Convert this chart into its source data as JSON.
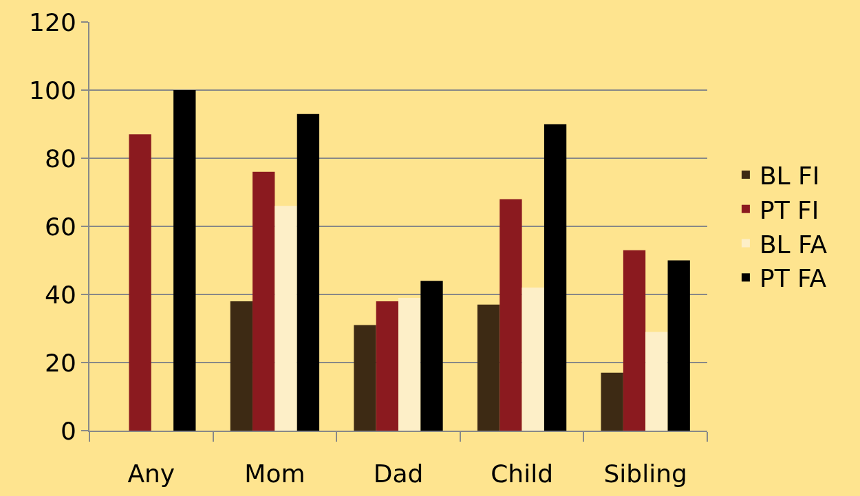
{
  "chart_data": {
    "type": "bar",
    "categories": [
      "Any",
      "Mom",
      "Dad",
      "Child",
      "Sibling"
    ],
    "series": [
      {
        "name": "BL FI",
        "color": "#3d2a14",
        "values": [
          null,
          38,
          31,
          37,
          17
        ]
      },
      {
        "name": "PT FI",
        "color": "#8b1a1f",
        "values": [
          87,
          76,
          38,
          68,
          53
        ]
      },
      {
        "name": "BL FA",
        "color": "#fdefc8",
        "values": [
          null,
          66,
          39,
          42,
          29
        ]
      },
      {
        "name": "PT FA",
        "color": "#000000",
        "values": [
          100,
          93,
          44,
          90,
          50
        ]
      }
    ],
    "ylim": [
      0,
      120
    ],
    "yticks": [
      0,
      20,
      40,
      60,
      80,
      100,
      120
    ],
    "grid": "y",
    "legend": "right"
  }
}
